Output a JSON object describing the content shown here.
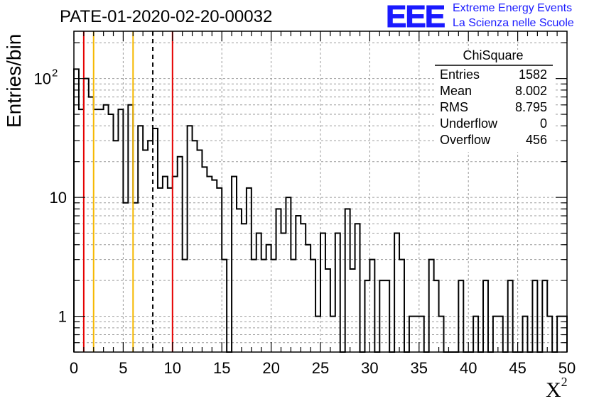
{
  "title": "PATE-01-2020-02-20-00032",
  "logo": {
    "mark": "EEE",
    "line1": "Extreme Energy Events",
    "line2": "La Scienza nelle Scuole",
    "color": "#1a1aff"
  },
  "stats": {
    "name": "ChiSquare",
    "rows": [
      {
        "label": "Entries",
        "value": "1582"
      },
      {
        "label": "Mean",
        "value": "8.002"
      },
      {
        "label": "RMS",
        "value": "8.795"
      },
      {
        "label": "Underflow",
        "value": "0"
      },
      {
        "label": "Overflow",
        "value": "456"
      }
    ]
  },
  "chart_data": {
    "type": "histogram",
    "ylabel": "Entries/bin",
    "xlabel": "X",
    "xlabel_sup": "2",
    "xlim": [
      0,
      50
    ],
    "ylim": [
      0.5,
      250
    ],
    "yscale": "log",
    "grid": true,
    "bin_width": 0.5,
    "xticks": [
      0,
      5,
      10,
      15,
      20,
      25,
      30,
      35,
      40,
      45,
      50
    ],
    "yticks": [
      {
        "value": 1,
        "label": "1"
      },
      {
        "value": 10,
        "label": "10"
      },
      {
        "value": 100,
        "label": "10",
        "sup": "2"
      }
    ],
    "values": [
      120,
      55,
      100,
      70,
      55,
      55,
      60,
      50,
      30,
      55,
      9,
      60,
      9,
      40,
      25,
      30,
      38,
      12,
      15,
      12,
      15,
      22,
      3,
      40,
      30,
      25,
      18,
      15,
      14,
      12,
      3,
      0,
      15,
      8,
      6,
      12,
      3,
      5,
      3,
      4,
      3,
      8,
      5,
      10,
      3,
      7,
      6,
      4,
      3,
      1,
      5,
      2.5,
      1,
      5,
      0,
      8,
      2.5,
      6,
      0,
      2,
      3,
      0,
      2,
      2,
      0,
      5,
      3,
      0,
      1,
      1,
      1,
      0,
      3,
      2,
      1,
      0,
      0,
      0,
      2,
      0,
      0,
      1,
      0,
      2,
      0,
      1,
      1,
      0,
      2,
      0,
      0,
      1,
      0,
      2,
      0,
      2,
      1,
      0,
      1,
      1
    ],
    "vlines": [
      {
        "x": 1,
        "color": "#e60000",
        "style": "solid"
      },
      {
        "x": 2,
        "color": "#f5b800",
        "style": "solid"
      },
      {
        "x": 6,
        "color": "#f5b800",
        "style": "solid"
      },
      {
        "x": 8,
        "color": "#000000",
        "style": "dashed"
      },
      {
        "x": 10,
        "color": "#e60000",
        "style": "solid"
      }
    ]
  }
}
